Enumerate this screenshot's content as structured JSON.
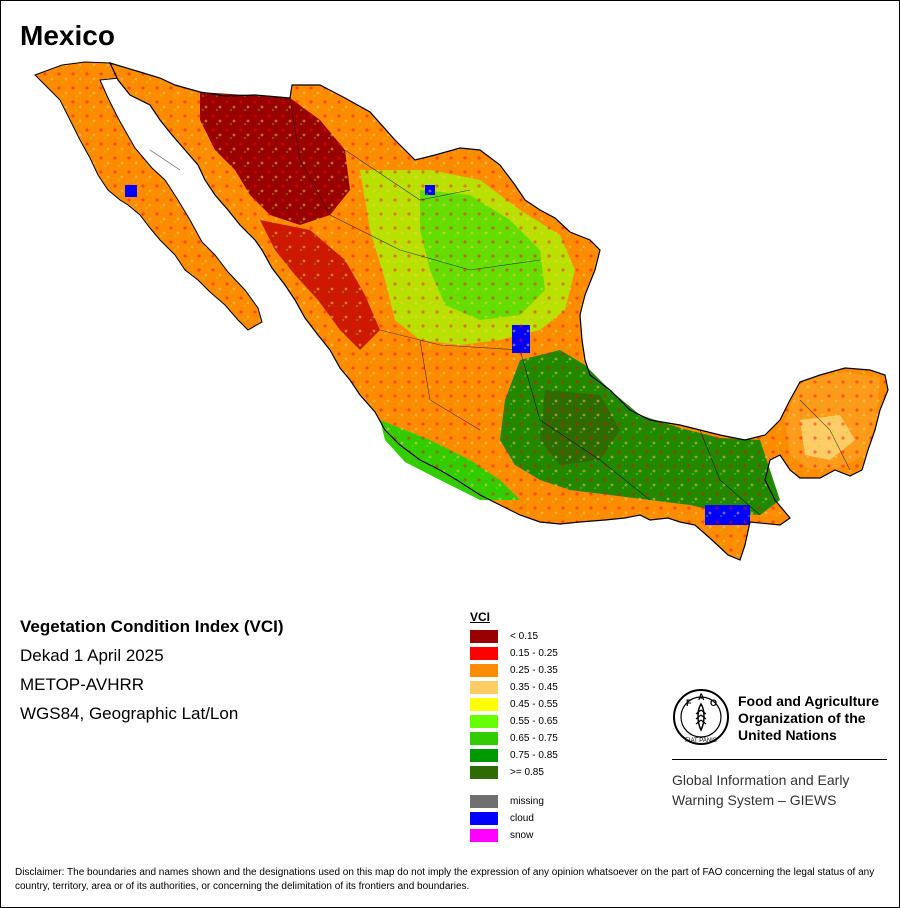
{
  "title": "Mexico",
  "info": {
    "index_name": "Vegetation Condition Index (VCI)",
    "period": "Dekad 1 April 2025",
    "sensor": "METOP-AVHRR",
    "projection": "WGS84, Geographic Lat/Lon"
  },
  "legend": {
    "title": "VCI",
    "classes": [
      {
        "label": "< 0.15",
        "color": "#990000"
      },
      {
        "label": "0.15 - 0.25",
        "color": "#ff0000"
      },
      {
        "label": "0.25 - 0.35",
        "color": "#ff8c00"
      },
      {
        "label": "0.35 - 0.45",
        "color": "#ffcc66"
      },
      {
        "label": "0.45 - 0.55",
        "color": "#ffff00"
      },
      {
        "label": "0.55 - 0.65",
        "color": "#66ff00"
      },
      {
        "label": "0.65 - 0.75",
        "color": "#33cc00"
      },
      {
        "label": "0.75 - 0.85",
        "color": "#009900"
      },
      {
        "label": ">= 0.85",
        "color": "#2e6b00"
      }
    ],
    "extra": [
      {
        "label": "missing",
        "color": "#707070"
      },
      {
        "label": "cloud",
        "color": "#0000ff"
      },
      {
        "label": "snow",
        "color": "#ff00ff"
      }
    ]
  },
  "organization": {
    "name": "Food and Agriculture Organization of the United Nations",
    "emblem_letters": "FAO",
    "emblem_motto": "FIAT PANIS",
    "system": "Global Information and Early Warning System – GIEWS"
  },
  "disclaimer": "Disclaimer: The boundaries and names shown and the designations used on this map do not imply the expression of any opinion whatsoever on the part of FAO concerning the legal status of any country, territory, area or of its authorities, or concerning the delimitation of its frontiers and boundaries."
}
